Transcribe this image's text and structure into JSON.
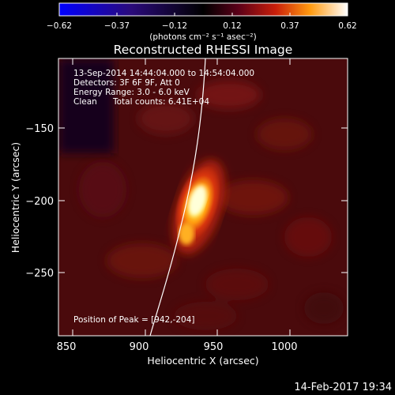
{
  "title": "Reconstructed RHESSI Image",
  "colorbar": {
    "tick_labels": [
      "−0.62",
      "−0.37",
      "−0.12",
      "0.12",
      "0.37",
      "0.62"
    ],
    "unit_label": "(photons cm⁻² s⁻¹ asec⁻²)",
    "range": [
      -0.62,
      0.62
    ],
    "colormap": "blue-black-red-yellow-white"
  },
  "annotations": {
    "time_range": "13-Sep-2014 14:44:04.000 to 14:54:04.000",
    "detectors": "Detectors: 3F 6F 9F, Att 0",
    "energy_range": "Energy Range: 3.0 - 6.0 keV",
    "algorithm": "Clean",
    "total_counts": "Total counts: 6.41E+04",
    "peak_position": "Position of Peak = [942,-204]"
  },
  "footer_timestamp": "14-Feb-2017 19:34",
  "chart_data": {
    "type": "heatmap",
    "xlabel": "Heliocentric X (arcsec)",
    "ylabel": "Heliocentric Y (arcsec)",
    "xlim": [
      840,
      1040
    ],
    "ylim": [
      -295,
      -115
    ],
    "x_ticks": [
      850,
      900,
      950,
      1000
    ],
    "x_tick_labels": [
      "850",
      "900",
      "950",
      "1000"
    ],
    "y_ticks": [
      -150,
      -200,
      -250
    ],
    "y_tick_labels": [
      "−150",
      "−200",
      "−250"
    ],
    "peak": {
      "x": 942,
      "y": -204
    },
    "solar_limb_line": true
  }
}
